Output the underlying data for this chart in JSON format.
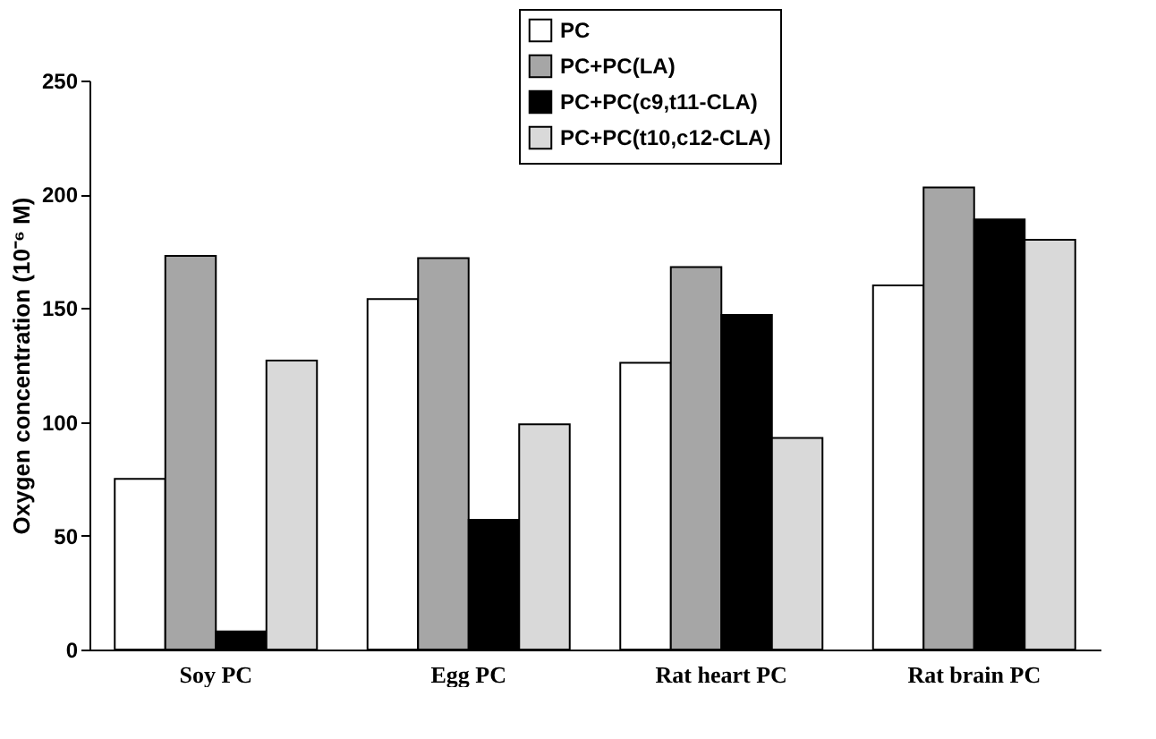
{
  "chart_data": {
    "type": "bar",
    "ylabel": "Oxygen concentration (10⁻⁶ M)",
    "categories": [
      "Soy PC",
      "Egg PC",
      "Rat heart PC",
      "Rat brain PC"
    ],
    "series": [
      {
        "name": "PC",
        "color": "#ffffff",
        "values": [
          75,
          154,
          126,
          160
        ]
      },
      {
        "name": "PC+PC(LA)",
        "color": "#a6a6a6",
        "values": [
          173,
          172,
          168,
          203
        ]
      },
      {
        "name": "PC+PC(c9,t11-CLA)",
        "color": "#000000",
        "values": [
          8,
          57,
          147,
          189
        ]
      },
      {
        "name": "PC+PC(t10,c12-CLA)",
        "color": "#d9d9d9",
        "values": [
          127,
          99,
          93,
          180
        ]
      }
    ],
    "ylim": [
      0,
      250
    ],
    "yticks": [
      0,
      50,
      100,
      150,
      200,
      250
    ],
    "grid": false,
    "legend": "top right"
  }
}
